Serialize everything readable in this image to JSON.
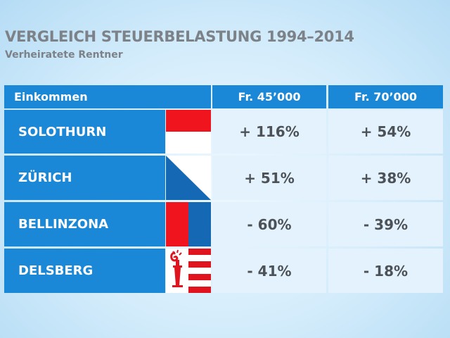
{
  "title": "VERGLEICH STEUERBELASTUNG 1994–2014",
  "subtitle": "Verheiratete Rentner",
  "chart_data": {
    "type": "table",
    "columns": [
      "Einkommen",
      "Fr. 45’000",
      "Fr. 70’000"
    ],
    "rows": [
      {
        "city": "SOLOTHURN",
        "flag": "solothurn-flag",
        "v45": "+ 116%",
        "v70": "+ 54%"
      },
      {
        "city": "ZÜRICH",
        "flag": "zurich-flag",
        "v45": "+ 51%",
        "v70": "+ 38%"
      },
      {
        "city": "BELLINZONA",
        "flag": "bellinzona-flag",
        "v45": "- 60%",
        "v70": "- 39%"
      },
      {
        "city": "DELSBERG",
        "flag": "delsberg-flag",
        "v45": "- 41%",
        "v70": "- 18%"
      }
    ],
    "values_numeric": {
      "Fr. 45’000": [
        116,
        51,
        -60,
        -41
      ],
      "Fr. 70’000": [
        54,
        38,
        -39,
        -18
      ]
    }
  },
  "colors": {
    "header_blue": "#1a88d6",
    "cell_light": "#e3f2fc",
    "text_gray": "#7c8287",
    "solothurn_red": "#f0141e",
    "zurich_blue": "#1568b4",
    "jura_red": "#e0141e"
  }
}
